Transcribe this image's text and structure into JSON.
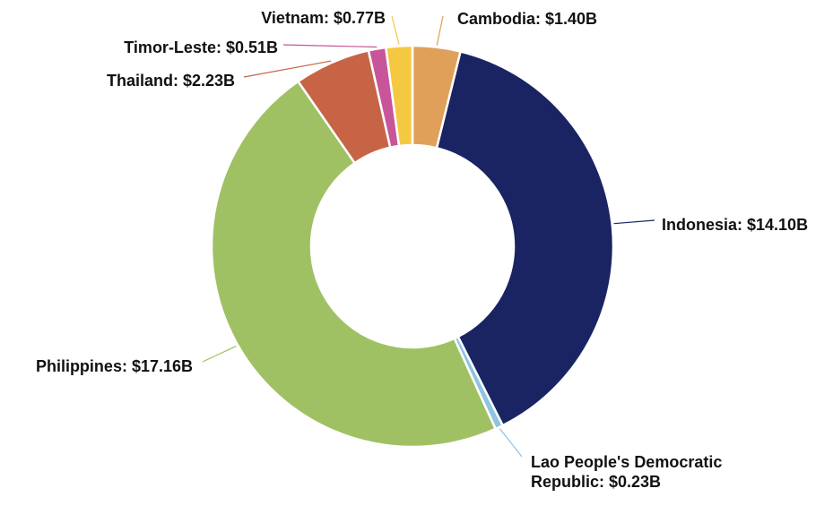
{
  "chart_data": {
    "type": "donut",
    "categories": [
      "Cambodia",
      "Indonesia",
      "Lao People's Democratic Republic",
      "Philippines",
      "Thailand",
      "Timor-Leste",
      "Vietnam"
    ],
    "values": [
      1.4,
      14.1,
      0.23,
      17.16,
      2.23,
      0.51,
      0.77
    ],
    "value_labels": [
      "Cambodia: $1.40B",
      "Indonesia: $14.10B",
      "Lao People's Democratic Republic: $0.23B",
      "Philippines: $17.16B",
      "Thailand: $2.23B",
      "Timor-Leste: $0.51B",
      "Vietnam: $0.77B"
    ],
    "colors": [
      "#e0a05a",
      "#1a2463",
      "#8fc3e0",
      "#9fc163",
      "#c86446",
      "#c8559a",
      "#f5c842"
    ]
  }
}
